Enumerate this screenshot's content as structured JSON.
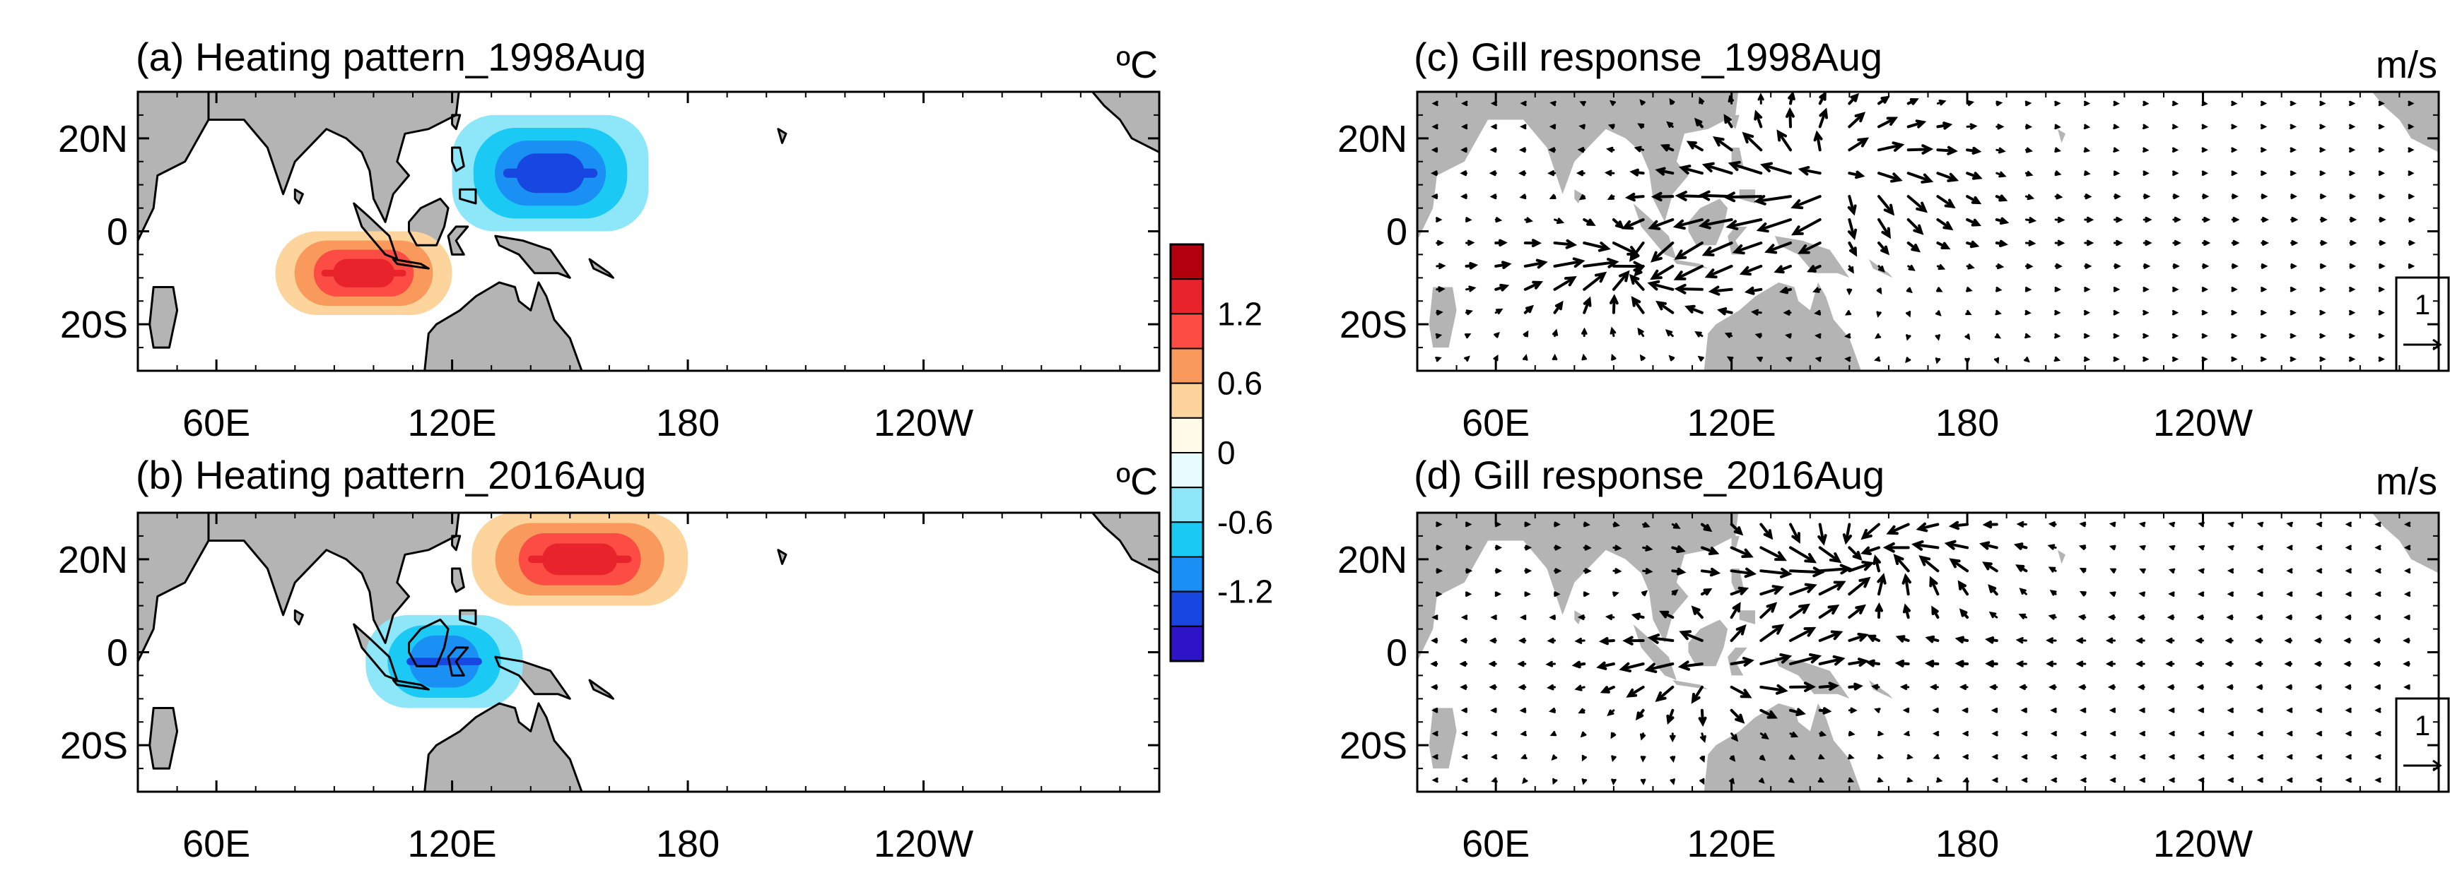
{
  "chart_data": [
    {
      "type": "heatmap",
      "panel": "a",
      "title": "(a) Heating pattern_1998Aug",
      "units": "ºC",
      "x_ticks": [
        "60E",
        "120E",
        "180",
        "120W"
      ],
      "x_tick_lon": [
        60,
        120,
        180,
        240
      ],
      "y_ticks": [
        "20N",
        "0",
        "20S"
      ],
      "y_tick_lat": [
        20,
        0,
        -20
      ],
      "xlim": [
        40,
        300
      ],
      "ylim": [
        -30,
        30
      ],
      "anomalies": [
        {
          "sign": "cooling",
          "lon_range": [
            120,
            170
          ],
          "lat_range": [
            0,
            25
          ],
          "center": [
            145,
            12
          ],
          "peak": -1.5
        },
        {
          "sign": "heating",
          "lon_range": [
            75,
            120
          ],
          "lat_range": [
            -18,
            0
          ],
          "center": [
            97,
            -9
          ],
          "peak": 1.5
        }
      ]
    },
    {
      "type": "heatmap",
      "panel": "b",
      "title": "(b) Heating pattern_2016Aug",
      "units": "ºC",
      "x_ticks": [
        "60E",
        "120E",
        "180",
        "120W"
      ],
      "x_tick_lon": [
        60,
        120,
        180,
        240
      ],
      "y_ticks": [
        "20N",
        "0",
        "20S"
      ],
      "y_tick_lat": [
        20,
        0,
        -20
      ],
      "xlim": [
        40,
        300
      ],
      "ylim": [
        -30,
        30
      ],
      "anomalies": [
        {
          "sign": "heating",
          "lon_range": [
            125,
            180
          ],
          "lat_range": [
            10,
            30
          ],
          "center": [
            152,
            21
          ],
          "peak": 1.5
        },
        {
          "sign": "cooling",
          "lon_range": [
            98,
            138
          ],
          "lat_range": [
            -12,
            8
          ],
          "center": [
            118,
            -3
          ],
          "peak": -1.1
        }
      ]
    },
    {
      "type": "vector",
      "panel": "c",
      "title": "(c) Gill response_1998Aug",
      "units": "m/s",
      "reference_vector": "1",
      "x_ticks": [
        "60E",
        "120E",
        "180",
        "120W"
      ],
      "x_tick_lon": [
        60,
        120,
        180,
        240
      ],
      "y_ticks": [
        "20N",
        "0",
        "20S"
      ],
      "y_tick_lat": [
        20,
        0,
        -20
      ],
      "xlim": [
        40,
        300
      ],
      "ylim": [
        -30,
        30
      ],
      "sources": [
        {
          "lon": 145,
          "lat": 12,
          "strength": -1.4,
          "sx": 18,
          "sy": 8
        },
        {
          "lon": 97,
          "lat": -9,
          "strength": 1.4,
          "sx": 16,
          "sy": 6
        }
      ]
    },
    {
      "type": "vector",
      "panel": "d",
      "title": "(d) Gill response_2016Aug",
      "units": "m/s",
      "reference_vector": "1",
      "x_ticks": [
        "60E",
        "120E",
        "180",
        "120W"
      ],
      "x_tick_lon": [
        60,
        120,
        180,
        240
      ],
      "y_ticks": [
        "20N",
        "0",
        "20S"
      ],
      "y_tick_lat": [
        20,
        0,
        -20
      ],
      "xlim": [
        40,
        300
      ],
      "ylim": [
        -30,
        30
      ],
      "sources": [
        {
          "lon": 152,
          "lat": 20,
          "strength": 1.4,
          "sx": 20,
          "sy": 7
        },
        {
          "lon": 118,
          "lat": -3,
          "strength": -1.1,
          "sx": 14,
          "sy": 7
        }
      ]
    }
  ],
  "colorbar": {
    "labels": [
      "1.2",
      "0.6",
      "0",
      "-0.6",
      "-1.2"
    ],
    "label_levels": [
      1.2,
      0.6,
      0,
      -0.6,
      -1.2
    ],
    "levels": [
      1.5,
      1.2,
      0.9,
      0.6,
      0.3,
      0,
      -0.3,
      -0.6,
      -0.9,
      -1.2,
      -1.5
    ],
    "colors": [
      "#b2000f",
      "#e8232c",
      "#fc4c44",
      "#f99a5c",
      "#fdd49c",
      "#fffbe8",
      "#e6fcfe",
      "#8ee7f8",
      "#1bc9f5",
      "#1a8ff4",
      "#1747e0",
      "#2d14c7"
    ]
  },
  "colors": {
    "land": "#b4b4b4",
    "coast": "#000000",
    "vector": "#000000",
    "frame": "#000000"
  }
}
